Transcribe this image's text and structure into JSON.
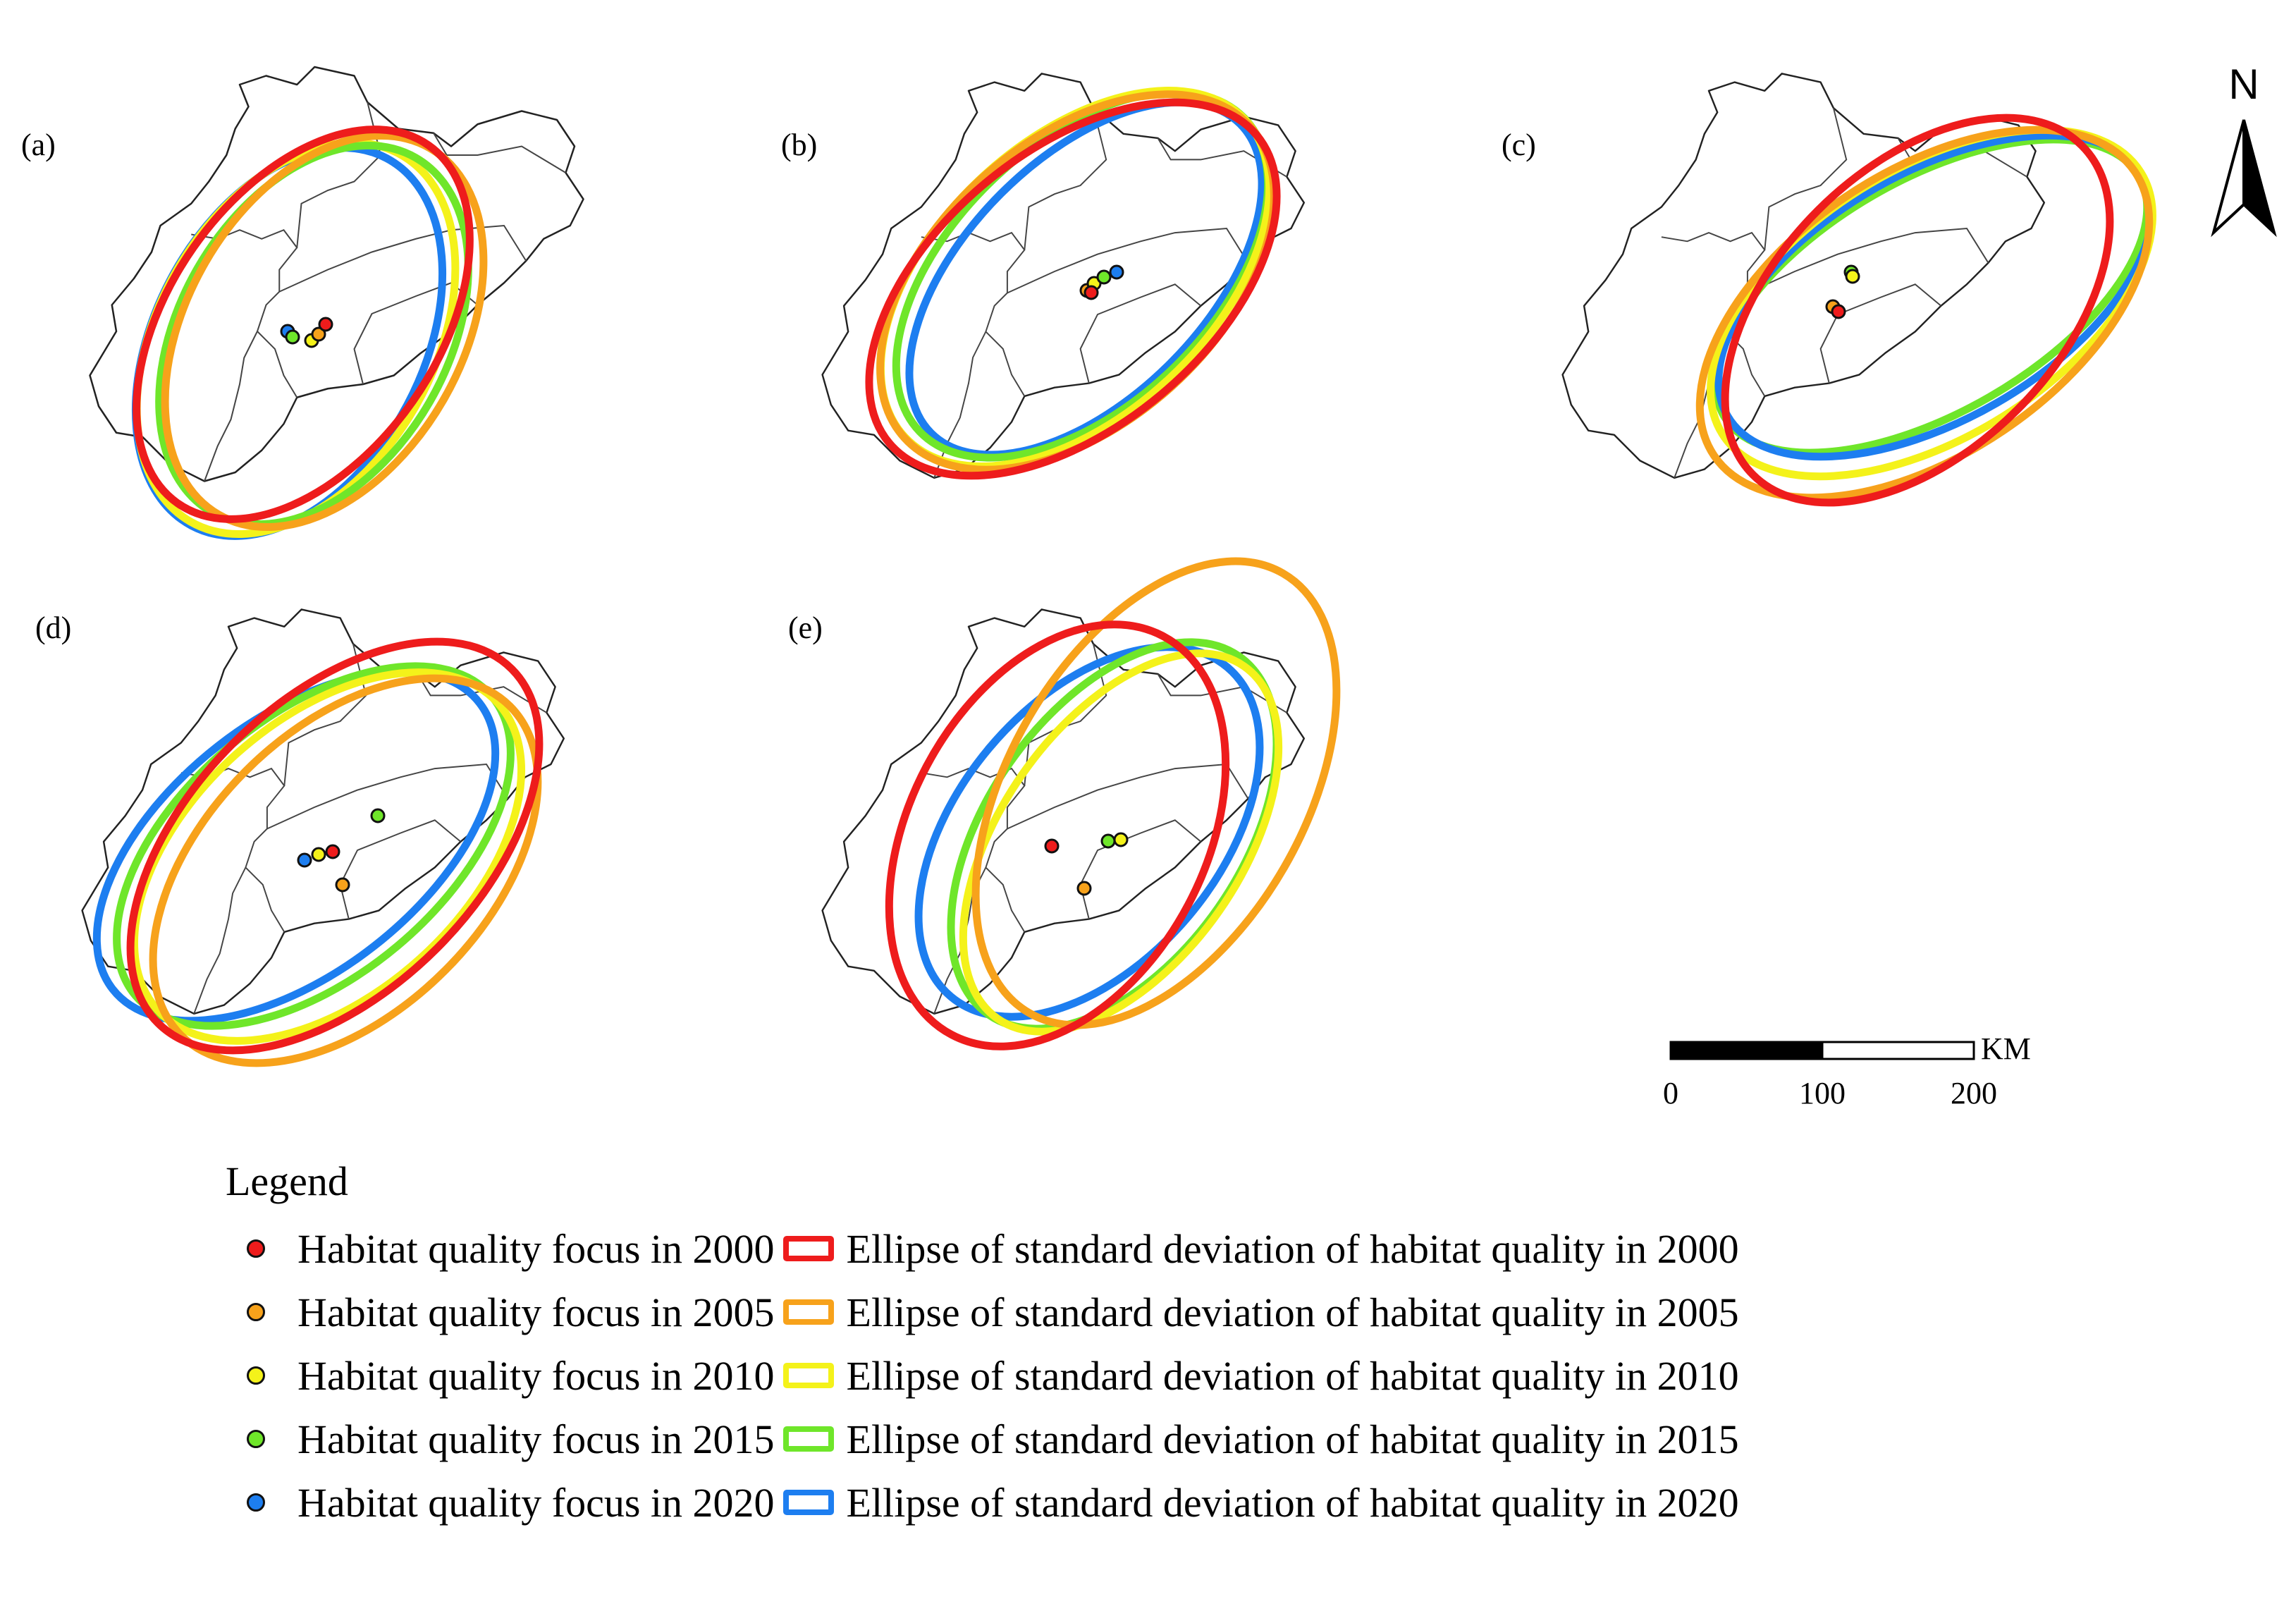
{
  "panels": [
    {
      "label": "(a)"
    },
    {
      "label": "(b)"
    },
    {
      "label": "(c)"
    },
    {
      "label": "(d)"
    },
    {
      "label": "(e)"
    }
  ],
  "years": [
    "2000",
    "2005",
    "2010",
    "2015",
    "2020"
  ],
  "colors": {
    "2000": "#ee1c1c",
    "2005": "#f7a21b",
    "2010": "#f4f21a",
    "2015": "#6fe62a",
    "2020": "#1d7ef0"
  },
  "north": {
    "label": "N",
    "icon": "north-arrow-icon"
  },
  "scale": {
    "unit": "KM",
    "ticks": [
      "0",
      "100",
      "200"
    ]
  },
  "legend": {
    "title": "Legend",
    "items": [
      {
        "year": "2000",
        "point": "Habitat quality focus in 2000",
        "ellipse": "Ellipse of standard deviation of habitat quality in 2000"
      },
      {
        "year": "2005",
        "point": "Habitat quality focus in 2005",
        "ellipse": "Ellipse of standard deviation of habitat quality in 2005"
      },
      {
        "year": "2010",
        "point": "Habitat quality focus in 2010",
        "ellipse": "Ellipse of standard deviation of habitat quality in 2010"
      },
      {
        "year": "2015",
        "point": "Habitat quality focus in 2015",
        "ellipse": "Ellipse of standard deviation of habitat quality in 2015"
      },
      {
        "year": "2020",
        "point": "Habitat quality focus in 2020",
        "ellipse": "Ellipse of standard deviation of habitat quality in 2020"
      }
    ]
  }
}
